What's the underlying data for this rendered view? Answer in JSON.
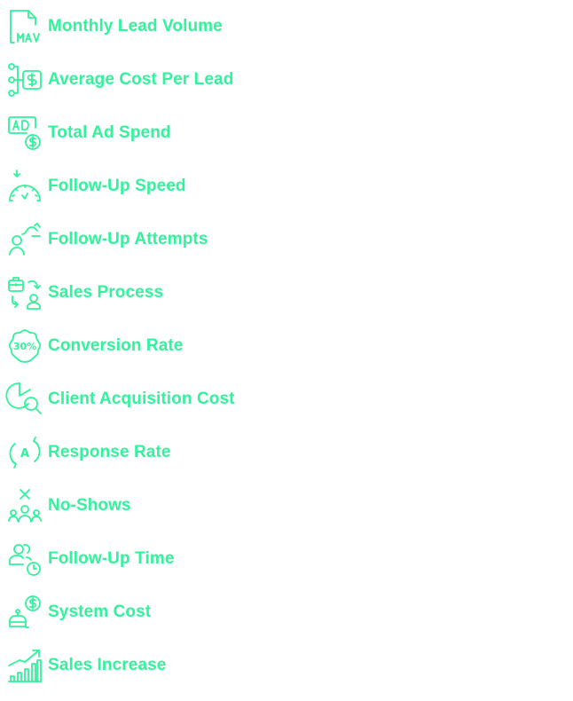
{
  "accent_color": "#30f39b",
  "items": [
    {
      "label": "Monthly Lead Volume",
      "icon": "document-mav-icon"
    },
    {
      "label": "Average Cost Per Lead",
      "icon": "flow-dollar-icon"
    },
    {
      "label": "Total Ad Spend",
      "icon": "ad-dollar-icon"
    },
    {
      "label": "Follow-Up Speed",
      "icon": "speedometer-icon"
    },
    {
      "label": "Follow-Up Attempts",
      "icon": "person-curved-arrow-icon"
    },
    {
      "label": "Sales Process",
      "icon": "briefcase-person-cycle-icon"
    },
    {
      "label": "Conversion Rate",
      "icon": "percent-badge-icon",
      "icon_text": "30%"
    },
    {
      "label": "Client Acquisition Cost",
      "icon": "pie-chart-magnifier-icon"
    },
    {
      "label": "Response Rate",
      "icon": "letter-a-cycle-icon",
      "icon_text": "A"
    },
    {
      "label": "No-Shows",
      "icon": "group-x-icon"
    },
    {
      "label": "Follow-Up Time",
      "icon": "people-clock-icon"
    },
    {
      "label": "System Cost",
      "icon": "robot-dollar-icon"
    },
    {
      "label": "Sales Increase",
      "icon": "growth-chart-icon"
    }
  ]
}
